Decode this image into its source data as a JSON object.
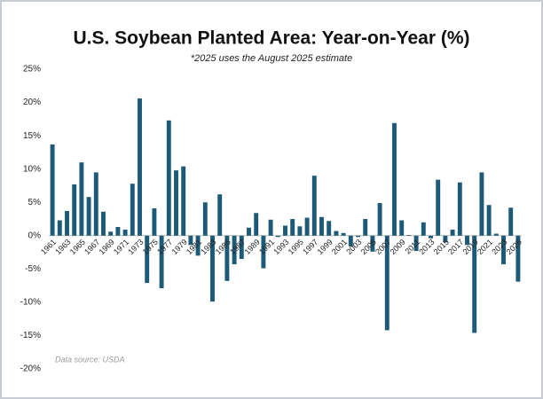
{
  "chart_data": {
    "type": "bar",
    "title": "U.S. Soybean Planted Area: Year-on-Year (%)",
    "subtitle": "*2025 uses the August 2025 estimate",
    "source": "Data source: USDA",
    "categories": [
      "1961",
      null,
      "1963",
      null,
      "1965",
      null,
      "1967",
      null,
      "1969",
      null,
      "1971",
      null,
      "1973",
      null,
      "1975",
      null,
      "1977",
      null,
      "1979",
      null,
      "1981",
      null,
      "1983",
      null,
      "1985",
      null,
      "1987",
      null,
      "1989",
      null,
      "1991",
      null,
      "1993",
      null,
      "1995",
      null,
      "1997",
      null,
      "1999",
      null,
      "2001",
      null,
      "2003",
      null,
      "2005",
      null,
      "2007",
      null,
      "2009",
      null,
      "2011",
      null,
      "2013",
      null,
      "2015",
      null,
      "2017",
      null,
      "2019",
      null,
      "2021",
      null,
      "2023",
      null,
      "2025"
    ],
    "values": [
      13.7,
      2.3,
      3.7,
      7.7,
      11.0,
      5.8,
      9.5,
      3.6,
      0.6,
      1.3,
      0.9,
      7.8,
      20.6,
      -7.1,
      4.1,
      -7.9,
      17.3,
      9.8,
      10.4,
      -1.4,
      -3.0,
      5.0,
      -9.9,
      6.2,
      -6.8,
      -4.3,
      -3.5,
      1.2,
      3.4,
      -4.9,
      2.4,
      -0.2,
      1.5,
      2.5,
      1.4,
      2.7,
      9.0,
      2.8,
      2.2,
      0.7,
      0.4,
      -1.6,
      -0.2,
      2.5,
      -2.4,
      4.9,
      -14.2,
      16.9,
      2.3,
      0.1,
      -2.3,
      2.0,
      -0.4,
      8.4,
      -1.0,
      0.9,
      8.0,
      -1.4,
      -14.6,
      9.5,
      4.6,
      0.3,
      -4.3,
      4.2,
      -6.9
    ],
    "color": "#1d5a78",
    "ylim": [
      -20,
      25
    ],
    "yticks": [
      {
        "value": -20,
        "label": "-20%"
      },
      {
        "value": -15,
        "label": "-15%"
      },
      {
        "value": -10,
        "label": "-10%"
      },
      {
        "value": -5,
        "label": "-5%"
      },
      {
        "value": 0,
        "label": "0%"
      },
      {
        "value": 5,
        "label": "5%"
      },
      {
        "value": 10,
        "label": "10%"
      },
      {
        "value": 15,
        "label": "15%"
      },
      {
        "value": 20,
        "label": "20%"
      },
      {
        "value": 25,
        "label": "25%"
      }
    ],
    "grid": false
  }
}
